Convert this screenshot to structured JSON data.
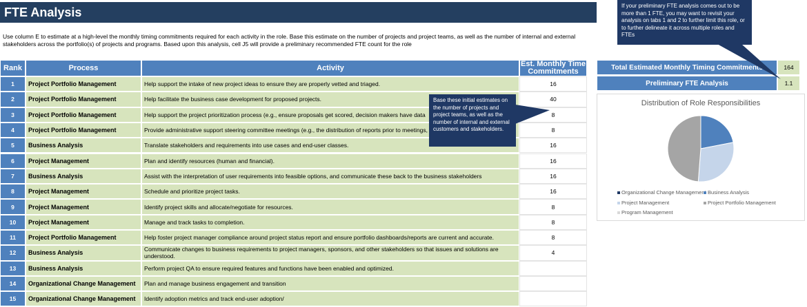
{
  "header": {
    "title": "FTE Analysis",
    "intro": "Use column E to estimate at a high-level the monthly timing commitments required for each activity in the role. Base this estimate on the number of projects and project teams, as well as the number of internal and external stakeholders across the portfolio(s) of projects and programs. Based upon this analysis, cell J5 will provide a preliminary recommended FTE count for the role"
  },
  "table": {
    "columns": [
      "Rank",
      "Process",
      "Activity",
      "Est. Monthly Time Commitments"
    ],
    "rows": [
      {
        "rank": 1,
        "process": "Project Portfolio Management",
        "activity": "Help support the intake of new project ideas to ensure they are properly vetted and triaged.",
        "commitment": 16
      },
      {
        "rank": 2,
        "process": "Project Portfolio Management",
        "activity": "Help facilitate the business case development for proposed projects.",
        "commitment": 40
      },
      {
        "rank": 3,
        "process": "Project Portfolio Management",
        "activity": "Help support the project prioritization process (e.g., ensure proposals get scored, decision makers have data",
        "commitment": 8
      },
      {
        "rank": 4,
        "process": "Project Portfolio Management",
        "activity": "Provide administrative support steering committee meetings (e.g., the distribution of reports prior to meetings,",
        "commitment": 8
      },
      {
        "rank": 5,
        "process": "Business Analysis",
        "activity": "Translate stakeholders and requirements into use cases and end-user classes.",
        "commitment": 16
      },
      {
        "rank": 6,
        "process": "Project Management",
        "activity": "Plan and identify resources (human and financial).",
        "commitment": 16
      },
      {
        "rank": 7,
        "process": "Business Analysis",
        "activity": "Assist with the interpretation of user requirements into feasible options, and communicate these back to the business stakeholders",
        "commitment": 16
      },
      {
        "rank": 8,
        "process": "Project Management",
        "activity": "Schedule and prioritize project tasks.",
        "commitment": 16
      },
      {
        "rank": 9,
        "process": "Project Management",
        "activity": "Identify project skills and allocate/negotiate for resources.",
        "commitment": 8
      },
      {
        "rank": 10,
        "process": "Project Management",
        "activity": "Manage and track tasks to completion.",
        "commitment": 8
      },
      {
        "rank": 11,
        "process": "Project Portfolio Management",
        "activity": "Help foster project manager compliance around project status report and ensure portfolio dashboards/reports are current and accurate.",
        "commitment": 8
      },
      {
        "rank": 12,
        "process": "Business Analysis",
        "activity": "Communicate changes to business requirements to project managers, sponsors, and other stakeholders so that issues and solutions are understood.",
        "commitment": 4
      },
      {
        "rank": 13,
        "process": "Business Analysis",
        "activity": "Perform project QA to ensure required features and functions have been enabled and optimized.",
        "commitment": null
      },
      {
        "rank": 14,
        "process": "Organizational Change Management",
        "activity": "Plan and manage business engagement and transition",
        "commitment": null
      },
      {
        "rank": 15,
        "process": "Organizational Change Management",
        "activity": "Identify adoption metrics and track end-user adoption/",
        "commitment": null
      }
    ]
  },
  "summary": [
    {
      "label": "Total Estimated Monthly Timing Commitments",
      "value": 164
    },
    {
      "label": "Preliminary FTE Analysis",
      "value": 1.1
    }
  ],
  "callouts": [
    "If your preliminary FTE analysis comes out to be more than 1 FTE, you may want to revisit your analysis on tabs 1 and 2 to further limit this role, or to further delineate it across multiple roles and FTEs",
    "Base these initial estimates on the number of projects and project teams, as well as the number of internal and external customers  and stakeholders."
  ],
  "chart_data": {
    "type": "pie",
    "title": "Distribution of Role Responsibilities",
    "categories": [
      "Organizational Change Management",
      "Business Analysis",
      "Project Management",
      "Project Portfolio Management",
      "Program Management"
    ],
    "values": [
      0,
      36,
      48,
      80,
      0
    ],
    "colors": [
      "#1f3864",
      "#4f81bd",
      "#c5d5ea",
      "#a5a5a5",
      "#d9d9d9"
    ]
  }
}
